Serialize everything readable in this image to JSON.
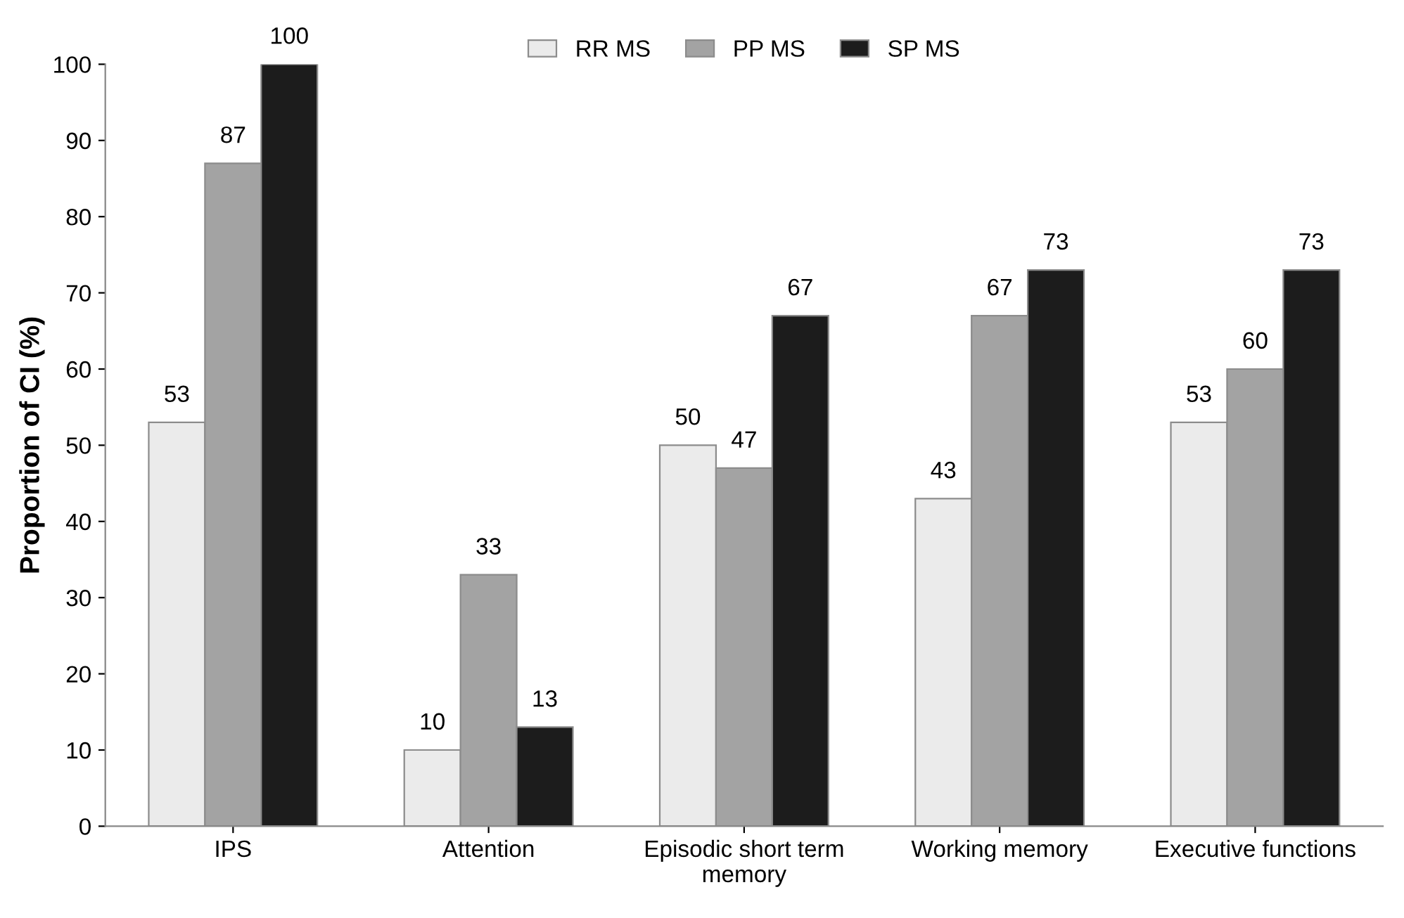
{
  "chart_data": {
    "type": "bar",
    "ylabel": "Proportion of CI (%)",
    "categories": [
      "IPS",
      "Attention",
      "Episodic short term\nmemory",
      "Working memory",
      "Executive functions"
    ],
    "series": [
      {
        "name": "RR MS",
        "color": "#ebebeb",
        "values": [
          53,
          10,
          50,
          43,
          53
        ]
      },
      {
        "name": "PP MS",
        "color": "#a3a3a3",
        "values": [
          87,
          33,
          47,
          67,
          60
        ]
      },
      {
        "name": "SP MS",
        "color": "#1c1c1c",
        "values": [
          100,
          13,
          67,
          73,
          73
        ]
      }
    ],
    "ylim": [
      0,
      100
    ],
    "yticks": [
      0,
      10,
      20,
      30,
      40,
      50,
      60,
      70,
      80,
      90,
      100
    ],
    "data_labels": true,
    "legend": "top",
    "grid": false
  }
}
